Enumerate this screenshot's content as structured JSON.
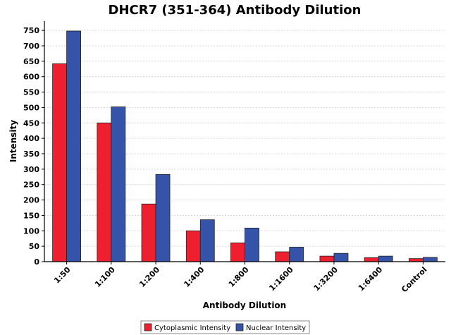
{
  "chart_data": {
    "type": "bar",
    "title": "DHCR7 (351-364) Antibody Dilution",
    "xlabel": "Antibody Dilution",
    "ylabel": "Intensity",
    "categories": [
      "1:50",
      "1:100",
      "1:200",
      "1:400",
      "1:800",
      "1:1600",
      "1:3200",
      "1:6400",
      "Control"
    ],
    "series": [
      {
        "name": "Cytoplasmic Intensity",
        "color": "#ee2030",
        "values": [
          642,
          450,
          187,
          100,
          61,
          32,
          18,
          13,
          10
        ]
      },
      {
        "name": "Nuclear Intensity",
        "color": "#3553a8",
        "values": [
          748,
          502,
          283,
          136,
          109,
          47,
          27,
          18,
          14
        ]
      }
    ],
    "ylim": [
      0,
      780
    ],
    "yticks": [
      0,
      50,
      100,
      150,
      200,
      250,
      300,
      350,
      400,
      450,
      500,
      550,
      600,
      650,
      700,
      750
    ],
    "grid": true,
    "legend": "bottom-center"
  }
}
